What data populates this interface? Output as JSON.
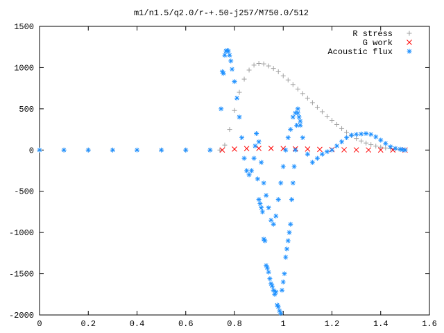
{
  "chart_data": {
    "type": "scatter",
    "title": "m1/n1.5/q2.0/r-+.50-j257/M750.0/512",
    "xlabel": "",
    "ylabel": "",
    "xlim": [
      0,
      1.6
    ],
    "ylim": [
      -2000,
      1500
    ],
    "x_ticks": [
      "0",
      "0.2",
      "0.4",
      "0.6",
      "0.8",
      "1",
      "1.2",
      "1.4",
      "1.6"
    ],
    "y_ticks": [
      "1500",
      "1000",
      "500",
      "0",
      "-500",
      "-1000",
      "-1500",
      "-2000"
    ],
    "grid": false,
    "legend_position": "top-right",
    "series": [
      {
        "name": "R stress",
        "marker": "+",
        "color": "#a0a0a0",
        "x": [
          0.0,
          0.1,
          0.2,
          0.3,
          0.4,
          0.5,
          0.6,
          0.7,
          0.74,
          0.76,
          0.78,
          0.8,
          0.82,
          0.84,
          0.86,
          0.88,
          0.9,
          0.92,
          0.94,
          0.96,
          0.98,
          1.0,
          1.02,
          1.04,
          1.06,
          1.08,
          1.1,
          1.12,
          1.14,
          1.16,
          1.18,
          1.2,
          1.22,
          1.24,
          1.26,
          1.28,
          1.3,
          1.32,
          1.34,
          1.36,
          1.38,
          1.4,
          1.42,
          1.44,
          1.46,
          1.48,
          1.5
        ],
        "y": [
          0,
          0,
          0,
          0,
          0,
          0,
          0,
          0,
          0,
          60,
          250,
          480,
          700,
          860,
          970,
          1030,
          1050,
          1045,
          1020,
          990,
          950,
          900,
          850,
          795,
          740,
          685,
          630,
          575,
          520,
          465,
          410,
          360,
          310,
          260,
          215,
          175,
          140,
          110,
          85,
          65,
          48,
          35,
          25,
          18,
          12,
          7,
          3
        ]
      },
      {
        "name": "G work",
        "marker": "x",
        "color": "#ff0000",
        "x": [
          0.75,
          0.8,
          0.85,
          0.9,
          0.95,
          1.0,
          1.05,
          1.1,
          1.15,
          1.2,
          1.25,
          1.3,
          1.35,
          1.4,
          1.45,
          1.5
        ],
        "y": [
          0,
          12,
          18,
          20,
          20,
          18,
          15,
          12,
          8,
          5,
          3,
          2,
          1,
          0,
          0,
          0
        ]
      },
      {
        "name": "Acoustic flux",
        "marker": "*",
        "color": "#1e90ff",
        "x": [
          0.0,
          0.1,
          0.2,
          0.3,
          0.4,
          0.5,
          0.6,
          0.7,
          0.745,
          0.75,
          0.755,
          0.76,
          0.765,
          0.77,
          0.775,
          0.78,
          0.785,
          0.79,
          0.8,
          0.81,
          0.82,
          0.83,
          0.84,
          0.85,
          0.86,
          0.87,
          0.88,
          0.885,
          0.89,
          0.9,
          0.91,
          0.92,
          0.93,
          0.94,
          0.95,
          0.96,
          0.97,
          0.98,
          0.99,
          1.0,
          1.01,
          1.02,
          1.03,
          1.04,
          1.05,
          1.06,
          1.07,
          1.08,
          1.1,
          1.12,
          1.14,
          1.16,
          1.18,
          1.2,
          1.22,
          1.24,
          1.26,
          1.28,
          1.3,
          1.32,
          1.34,
          1.36,
          1.38,
          1.4,
          1.42,
          1.44,
          1.46,
          1.48,
          1.49,
          1.5,
          0.895,
          0.9,
          0.905,
          0.91,
          0.915,
          0.92,
          0.925,
          0.93,
          0.935,
          0.94,
          0.945,
          0.95,
          0.955,
          0.96,
          0.965,
          0.97,
          0.975,
          0.98,
          0.985,
          0.99,
          0.995,
          1.0,
          1.005,
          1.01,
          1.015,
          1.02,
          1.025,
          1.03,
          1.035,
          1.04,
          1.045,
          1.05,
          1.055,
          1.06,
          1.065,
          1.07
        ],
        "y": [
          0,
          0,
          0,
          0,
          0,
          0,
          0,
          0,
          500,
          950,
          930,
          1150,
          1200,
          1210,
          1200,
          1150,
          1080,
          980,
          830,
          630,
          400,
          150,
          -100,
          -250,
          -300,
          -250,
          -100,
          50,
          200,
          100,
          -150,
          -400,
          -550,
          -700,
          -850,
          -900,
          -800,
          -600,
          -400,
          -200,
          0,
          150,
          250,
          400,
          450,
          500,
          300,
          150,
          -50,
          -150,
          -100,
          -50,
          -20,
          0,
          50,
          100,
          150,
          180,
          190,
          195,
          200,
          190,
          160,
          120,
          80,
          40,
          20,
          10,
          5,
          0,
          -350,
          -600,
          -650,
          -700,
          -750,
          -1080,
          -1100,
          -1400,
          -1430,
          -1480,
          -1560,
          -1620,
          -1650,
          -1700,
          -1750,
          -1720,
          -1880,
          -1900,
          -1950,
          -1980,
          -1700,
          -1600,
          -1500,
          -1300,
          -1200,
          -1100,
          -1000,
          -900,
          -600,
          -400,
          -200,
          0,
          300,
          450,
          400,
          350
        ]
      }
    ]
  }
}
